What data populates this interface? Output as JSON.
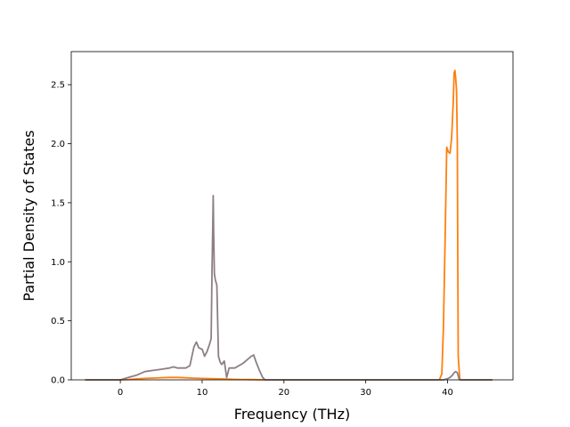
{
  "chart_data": {
    "type": "line",
    "title": "",
    "xlabel": "Frequency (THz)",
    "ylabel": "Partial Density of States",
    "xlim": [
      -6.0,
      48.0
    ],
    "ylim": [
      0.0,
      2.78
    ],
    "xticks": [
      0,
      10,
      20,
      30,
      40
    ],
    "yticks": [
      0.0,
      0.5,
      1.0,
      1.5,
      2.0,
      2.5
    ],
    "xtick_labels": [
      "0",
      "10",
      "20",
      "30",
      "40"
    ],
    "ytick_labels": [
      "0.0",
      "0.5",
      "1.0",
      "1.5",
      "2.0",
      "2.5"
    ],
    "grid": false,
    "series": [
      {
        "color": "#ff7f0e",
        "x": [
          -4.3,
          0.0,
          1.0,
          2.0,
          3.0,
          4.0,
          5.0,
          6.0,
          7.0,
          8.0,
          9.0,
          10.0,
          11.0,
          12.0,
          13.0,
          14.0,
          15.0,
          16.0,
          17.0,
          17.6,
          18.0,
          38.5,
          39.0,
          39.3,
          39.5,
          39.7,
          39.9,
          40.1,
          40.3,
          40.5,
          40.7,
          40.8,
          40.9,
          41.0,
          41.1,
          41.2,
          41.25,
          41.3,
          41.5,
          42.0,
          45.5
        ],
        "y": [
          0.0,
          0.0,
          0.003,
          0.008,
          0.012,
          0.015,
          0.018,
          0.02,
          0.02,
          0.017,
          0.014,
          0.012,
          0.01,
          0.008,
          0.006,
          0.004,
          0.003,
          0.002,
          0.001,
          0.0,
          0.0,
          0.0,
          0.0,
          0.05,
          0.45,
          1.2,
          1.97,
          1.93,
          1.92,
          2.05,
          2.35,
          2.6,
          2.62,
          2.55,
          2.45,
          2.0,
          1.0,
          0.2,
          0.0,
          0.0,
          0.0
        ]
      },
      {
        "color": "#8c7f86",
        "x": [
          -4.3,
          0.0,
          1.0,
          2.0,
          3.0,
          4.0,
          5.0,
          6.0,
          6.5,
          7.0,
          8.0,
          8.5,
          9.0,
          9.3,
          9.6,
          10.0,
          10.3,
          10.6,
          10.9,
          11.1,
          11.2,
          11.3,
          11.35,
          11.4,
          11.5,
          11.6,
          11.8,
          12.0,
          12.2,
          12.4,
          12.7,
          13.0,
          13.3,
          14.0,
          15.0,
          15.5,
          16.0,
          16.3,
          16.6,
          17.0,
          17.4,
          17.7,
          18.0,
          39.5,
          40.0,
          40.3,
          40.6,
          40.8,
          41.0,
          41.2,
          41.4,
          41.6,
          45.5
        ],
        "y": [
          0.0,
          0.0,
          0.02,
          0.04,
          0.07,
          0.08,
          0.09,
          0.1,
          0.11,
          0.1,
          0.1,
          0.12,
          0.28,
          0.32,
          0.27,
          0.26,
          0.2,
          0.24,
          0.3,
          0.35,
          0.9,
          1.3,
          1.56,
          1.3,
          0.9,
          0.85,
          0.8,
          0.2,
          0.15,
          0.13,
          0.16,
          0.02,
          0.1,
          0.1,
          0.14,
          0.17,
          0.2,
          0.21,
          0.15,
          0.08,
          0.02,
          0.0,
          0.0,
          0.0,
          0.01,
          0.02,
          0.04,
          0.06,
          0.07,
          0.06,
          0.01,
          0.0,
          0.0
        ]
      }
    ]
  }
}
